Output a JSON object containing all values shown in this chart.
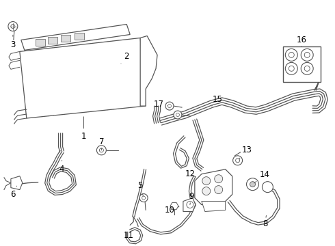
{
  "bg_color": "#ffffff",
  "line_color": "#555555",
  "label_color": "#000000",
  "lw": 0.9,
  "fig_w": 4.9,
  "fig_h": 3.6,
  "dpi": 100
}
